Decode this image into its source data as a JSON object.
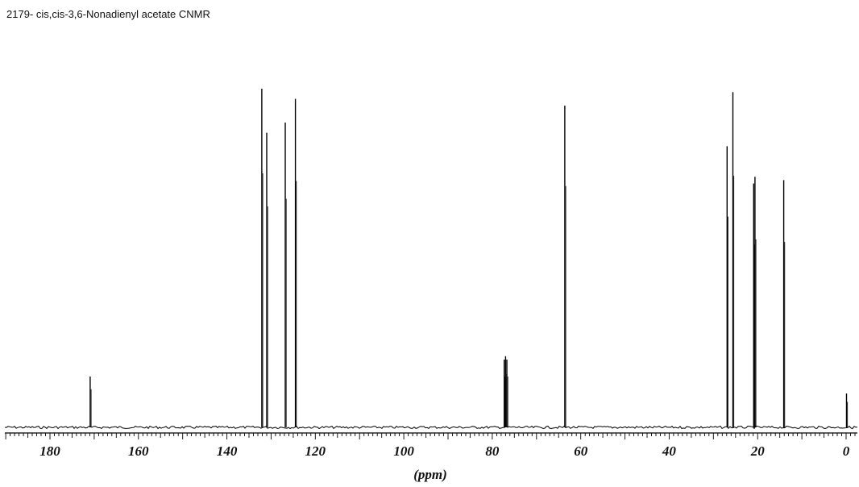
{
  "chart_data": {
    "type": "line",
    "title": "2179- cis,cis-3,6-Nonadienyl acetate CNMR",
    "xlabel": "(ppm)",
    "ylabel": "",
    "xlim": [
      190,
      -2
    ],
    "ylim": [
      0,
      1
    ],
    "x_reversed": true,
    "grid": false,
    "legend": "none",
    "ticks": [
      {
        "value": 180,
        "label": "180"
      },
      {
        "value": 160,
        "label": "160"
      },
      {
        "value": 140,
        "label": "140"
      },
      {
        "value": 120,
        "label": "120"
      },
      {
        "value": 100,
        "label": "100"
      },
      {
        "value": 80,
        "label": "80"
      },
      {
        "value": 60,
        "label": "60"
      },
      {
        "value": 40,
        "label": "40"
      },
      {
        "value": 20,
        "label": "20"
      },
      {
        "value": 0,
        "label": "0"
      }
    ],
    "series": [
      {
        "line_color": "#000000",
        "peaks": [
          {
            "x": 170.9,
            "y": 0.15
          },
          {
            "x": 132.1,
            "y": 1.0
          },
          {
            "x": 131.0,
            "y": 0.87
          },
          {
            "x": 126.8,
            "y": 0.9
          },
          {
            "x": 124.5,
            "y": 0.97
          },
          {
            "x": 77.3,
            "y": 0.2
          },
          {
            "x": 77.0,
            "y": 0.21
          },
          {
            "x": 76.7,
            "y": 0.2
          },
          {
            "x": 63.6,
            "y": 0.95
          },
          {
            "x": 26.9,
            "y": 0.83
          },
          {
            "x": 25.6,
            "y": 0.99
          },
          {
            "x": 20.9,
            "y": 0.72
          },
          {
            "x": 20.6,
            "y": 0.74
          },
          {
            "x": 14.1,
            "y": 0.73
          },
          {
            "x": -0.1,
            "y": 0.1
          }
        ]
      }
    ]
  }
}
